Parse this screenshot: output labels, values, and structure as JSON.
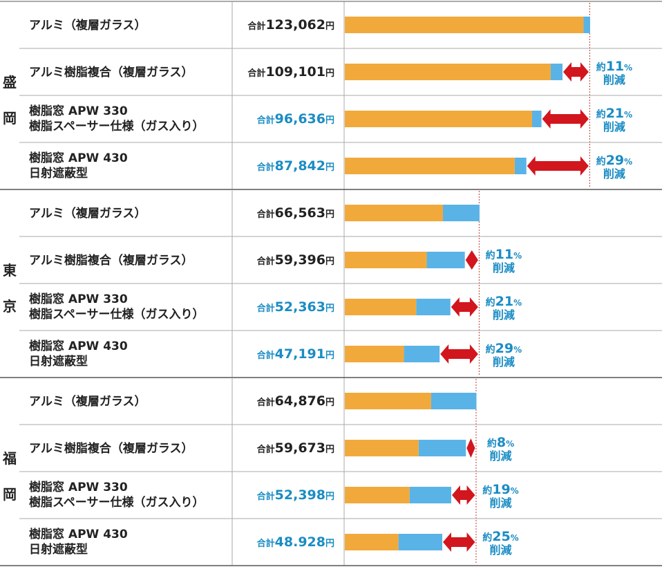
{
  "chart_data": {
    "type": "bar",
    "stacked": true,
    "orientation": "horizontal",
    "colors": {
      "segment1": "#F2A93B",
      "segment2": "#5AB3E6",
      "arrow": "#D2161E",
      "highlight_text": "#1A8CC4",
      "text": "#222222",
      "rule": "#555555",
      "grid": "#AAAAAA",
      "reference_line": "#C0392B"
    },
    "total_prefix": "合計",
    "total_suffix": "円",
    "reduction_prefix": "約",
    "reduction_unit": "%",
    "reduction_word": "削減",
    "groups": [
      {
        "region": "盛岡",
        "rows": [
          {
            "label": [
              "アルミ（複層ガラス）"
            ],
            "total_value": "123,062",
            "segments": [
              109000,
              3000
            ],
            "highlight": false,
            "reduction": ""
          },
          {
            "label": [
              "アルミ樹脂複合（複層ガラス）"
            ],
            "total_value": "109,101",
            "segments": [
              94000,
              5400
            ],
            "highlight": false,
            "reduction": "11"
          },
          {
            "label": [
              "樹脂窓 APW 330",
              "樹脂スペーサー仕様（ガス入り）"
            ],
            "total_value": "96,636",
            "segments": [
              85500,
              4300
            ],
            "highlight": true,
            "reduction": "21"
          },
          {
            "label": [
              "樹脂窓 APW 430",
              "日射遮蔽型"
            ],
            "total_value": "87,842",
            "segments": [
              77600,
              5300
            ],
            "highlight": true,
            "reduction": "29"
          }
        ]
      },
      {
        "region": "東京",
        "rows": [
          {
            "label": [
              "アルミ（複層ガラス）"
            ],
            "total_value": "66,563",
            "segments": [
              44800,
              16700
            ],
            "highlight": false,
            "reduction": ""
          },
          {
            "label": [
              "アルミ樹脂複合（複層ガラス）"
            ],
            "total_value": "59,396",
            "segments": [
              37400,
              17400
            ],
            "highlight": false,
            "reduction": "11"
          },
          {
            "label": [
              "樹脂窓 APW 330",
              "樹脂スペーサー仕様（ガス入り）"
            ],
            "total_value": "52,363",
            "segments": [
              32600,
              15600
            ],
            "highlight": true,
            "reduction": "21"
          },
          {
            "label": [
              "樹脂窓 APW 430",
              "日射遮蔽型"
            ],
            "total_value": "47,191",
            "segments": [
              27000,
              16300
            ],
            "highlight": true,
            "reduction": "29"
          }
        ]
      },
      {
        "region": "福岡",
        "rows": [
          {
            "label": [
              "アルミ（複層ガラス）"
            ],
            "total_value": "64,876",
            "segments": [
              39400,
              20700
            ],
            "highlight": false,
            "reduction": ""
          },
          {
            "label": [
              "アルミ樹脂複合（複層ガラス）"
            ],
            "total_value": "59,673",
            "segments": [
              33700,
              21600
            ],
            "highlight": false,
            "reduction": "8"
          },
          {
            "label": [
              "樹脂窓 APW 330",
              "樹脂スペーサー仕様（ガス入り）"
            ],
            "total_value": "52,398",
            "segments": [
              29600,
              19000
            ],
            "highlight": true,
            "reduction": "19"
          },
          {
            "label": [
              "樹脂窓 APW 430",
              "日射遮蔽型"
            ],
            "total_value": "48.928",
            "segments": [
              24500,
              20000
            ],
            "highlight": true,
            "reduction": "25"
          }
        ]
      }
    ]
  }
}
